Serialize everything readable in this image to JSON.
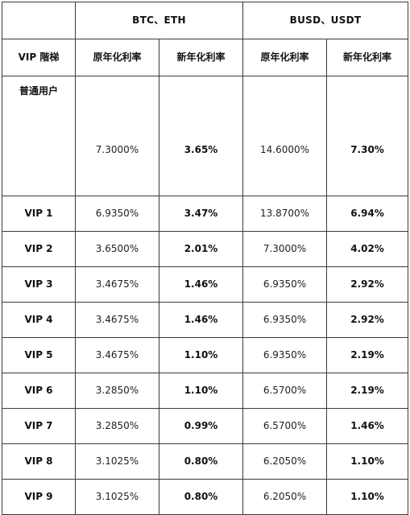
{
  "header": {
    "group_btc_eth": "BTC、ETH",
    "group_busd_usdt": "BUSD、USDT",
    "tier_label": "VIP 階梯",
    "col_old_rate": "原年化利率",
    "col_new_rate": "新年化利率"
  },
  "rows": [
    {
      "tier": "普通用户",
      "btc_old": "7.3000%",
      "btc_new": "3.65%",
      "busd_old": "14.6000%",
      "busd_new": "7.30%"
    },
    {
      "tier": "VIP 1",
      "btc_old": "6.9350%",
      "btc_new": "3.47%",
      "busd_old": "13.8700%",
      "busd_new": "6.94%"
    },
    {
      "tier": "VIP 2",
      "btc_old": "3.6500%",
      "btc_new": "2.01%",
      "busd_old": "7.3000%",
      "busd_new": "4.02%"
    },
    {
      "tier": "VIP 3",
      "btc_old": "3.4675%",
      "btc_new": "1.46%",
      "busd_old": "6.9350%",
      "busd_new": "2.92%"
    },
    {
      "tier": "VIP 4",
      "btc_old": "3.4675%",
      "btc_new": "1.46%",
      "busd_old": "6.9350%",
      "busd_new": "2.92%"
    },
    {
      "tier": "VIP 5",
      "btc_old": "3.4675%",
      "btc_new": "1.10%",
      "busd_old": "6.9350%",
      "busd_new": "2.19%"
    },
    {
      "tier": "VIP 6",
      "btc_old": "3.2850%",
      "btc_new": "1.10%",
      "busd_old": "6.5700%",
      "busd_new": "2.19%"
    },
    {
      "tier": "VIP 7",
      "btc_old": "3.2850%",
      "btc_new": "0.99%",
      "busd_old": "6.5700%",
      "busd_new": "1.46%"
    },
    {
      "tier": "VIP 8",
      "btc_old": "3.1025%",
      "btc_new": "0.80%",
      "busd_old": "6.2050%",
      "busd_new": "1.10%"
    },
    {
      "tier": "VIP 9",
      "btc_old": "3.1025%",
      "btc_new": "0.80%",
      "busd_old": "6.2050%",
      "busd_new": "1.10%"
    }
  ]
}
